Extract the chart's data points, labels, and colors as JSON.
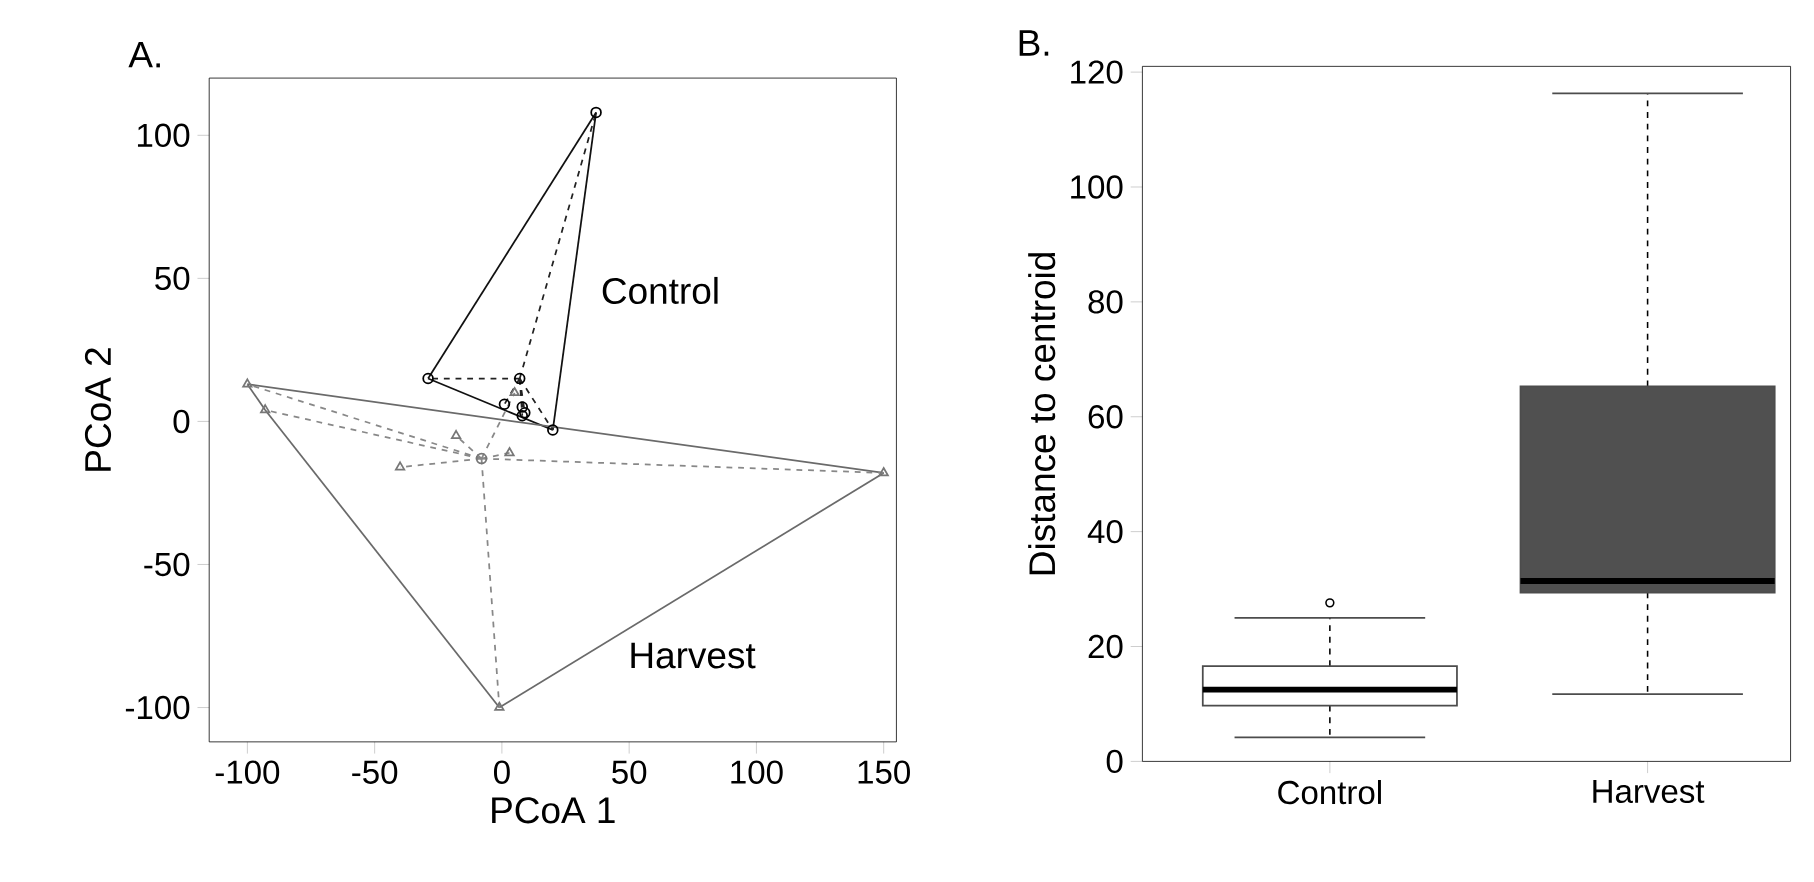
{
  "chart_data": [
    {
      "type": "scatter",
      "title": "A.",
      "xlabel": "PCoA 1",
      "ylabel": "PCoA 2",
      "xlim": [
        -115,
        155
      ],
      "ylim": [
        -112,
        120
      ],
      "xticks": [
        -100,
        -50,
        0,
        50,
        100,
        150
      ],
      "yticks": [
        -100,
        -50,
        0,
        50,
        100
      ],
      "series": [
        {
          "type": "line",
          "color": "#111111",
          "line_style": "solid",
          "x": [
            -29,
            37
          ],
          "values": [
            15,
            108
          ]
        },
        {
          "type": "line",
          "color": "#111111",
          "line_style": "solid",
          "x": [
            37,
            20
          ],
          "values": [
            108,
            -3
          ]
        },
        {
          "type": "line",
          "color": "#111111",
          "line_style": "solid",
          "x": [
            20,
            -29
          ],
          "values": [
            -3,
            15
          ]
        },
        {
          "type": "line",
          "color": "#6a6a6a",
          "line_style": "solid",
          "x": [
            -100,
            150
          ],
          "values": [
            13,
            -18
          ]
        },
        {
          "type": "line",
          "color": "#6a6a6a",
          "line_style": "solid",
          "x": [
            150,
            -1
          ],
          "values": [
            -18,
            -100
          ]
        },
        {
          "type": "line",
          "color": "#6a6a6a",
          "line_style": "solid",
          "x": [
            -1,
            -93
          ],
          "values": [
            -100,
            4
          ]
        },
        {
          "type": "line",
          "color": "#6a6a6a",
          "line_style": "solid",
          "x": [
            -93,
            -100
          ],
          "values": [
            4,
            13
          ]
        },
        {
          "type": "line",
          "color": "#222222",
          "line_style": "dashed",
          "x": [
            7,
            37
          ],
          "values": [
            15,
            108
          ]
        },
        {
          "type": "line",
          "color": "#222222",
          "line_style": "dashed",
          "x": [
            7,
            -29
          ],
          "values": [
            15,
            15
          ]
        },
        {
          "type": "line",
          "color": "#222222",
          "line_style": "dashed",
          "x": [
            7,
            20
          ],
          "values": [
            15,
            -3
          ]
        },
        {
          "type": "line",
          "color": "#222222",
          "line_style": "dashed",
          "x": [
            7,
            1
          ],
          "values": [
            15,
            6
          ]
        },
        {
          "type": "line",
          "color": "#222222",
          "line_style": "dashed",
          "x": [
            7,
            8
          ],
          "values": [
            15,
            5
          ]
        },
        {
          "type": "line",
          "color": "#222222",
          "line_style": "dashed",
          "x": [
            7,
            8
          ],
          "values": [
            15,
            2
          ]
        },
        {
          "type": "line",
          "color": "#222222",
          "line_style": "dashed",
          "x": [
            7,
            9
          ],
          "values": [
            15,
            3
          ]
        },
        {
          "type": "line",
          "color": "#888888",
          "line_style": "dashed",
          "x": [
            -8,
            -100
          ],
          "values": [
            -13,
            13
          ]
        },
        {
          "type": "line",
          "color": "#888888",
          "line_style": "dashed",
          "x": [
            -8,
            -93
          ],
          "values": [
            -13,
            4
          ]
        },
        {
          "type": "line",
          "color": "#888888",
          "line_style": "dashed",
          "x": [
            -8,
            -18
          ],
          "values": [
            -13,
            -5
          ]
        },
        {
          "type": "line",
          "color": "#888888",
          "line_style": "dashed",
          "x": [
            -8,
            -40
          ],
          "values": [
            -13,
            -16
          ]
        },
        {
          "type": "line",
          "color": "#888888",
          "line_style": "dashed",
          "x": [
            -8,
            3
          ],
          "values": [
            -13,
            -11
          ]
        },
        {
          "type": "line",
          "color": "#888888",
          "line_style": "dashed",
          "x": [
            -8,
            150
          ],
          "values": [
            -13,
            -18
          ]
        },
        {
          "type": "line",
          "color": "#888888",
          "line_style": "dashed",
          "x": [
            -8,
            -1
          ],
          "values": [
            -13,
            -100
          ]
        },
        {
          "type": "line",
          "color": "#888888",
          "line_style": "dashed",
          "x": [
            -8,
            5
          ],
          "values": [
            -13,
            10
          ]
        },
        {
          "type": "scatter",
          "color": "#000000",
          "marker": "circle",
          "x": [
            37,
            -29,
            20,
            1,
            8,
            8,
            9
          ],
          "values": [
            108,
            15,
            -3,
            6,
            5,
            2,
            3
          ]
        },
        {
          "type": "scatter",
          "color": "#777777",
          "marker": "triangle",
          "x": [
            -100,
            -93,
            -18,
            -40,
            3,
            150,
            -1,
            5
          ],
          "values": [
            13,
            4,
            -5,
            -16,
            -11,
            -18,
            -100,
            10
          ]
        },
        {
          "type": "scatter",
          "color": "#000000",
          "marker": "circle",
          "x": [
            7
          ],
          "values": [
            15
          ]
        },
        {
          "type": "scatter",
          "color": "#777777",
          "marker": "circle",
          "x": [
            -8
          ],
          "values": [
            -13
          ]
        }
      ],
      "annotations": [
        "Control",
        "Harvest"
      ]
    },
    {
      "type": "box",
      "title": "B.",
      "ylabel": "Distance to centroid",
      "categories": [
        "Control",
        "Harvest"
      ],
      "ylim": [
        0,
        121
      ],
      "yticks": [
        0,
        20,
        40,
        60,
        80,
        100,
        120
      ],
      "colors": [
        "#ffffff",
        "#505050"
      ],
      "boxes": [
        {
          "low": 4.2,
          "q1": 9.7,
          "median": 12.5,
          "q3": 16.6,
          "high": 25,
          "outliers": [
            27.6
          ]
        },
        {
          "low": 11.7,
          "q1": 29.4,
          "median": 31.4,
          "q3": 65.3,
          "high": 116.3
        }
      ]
    }
  ]
}
